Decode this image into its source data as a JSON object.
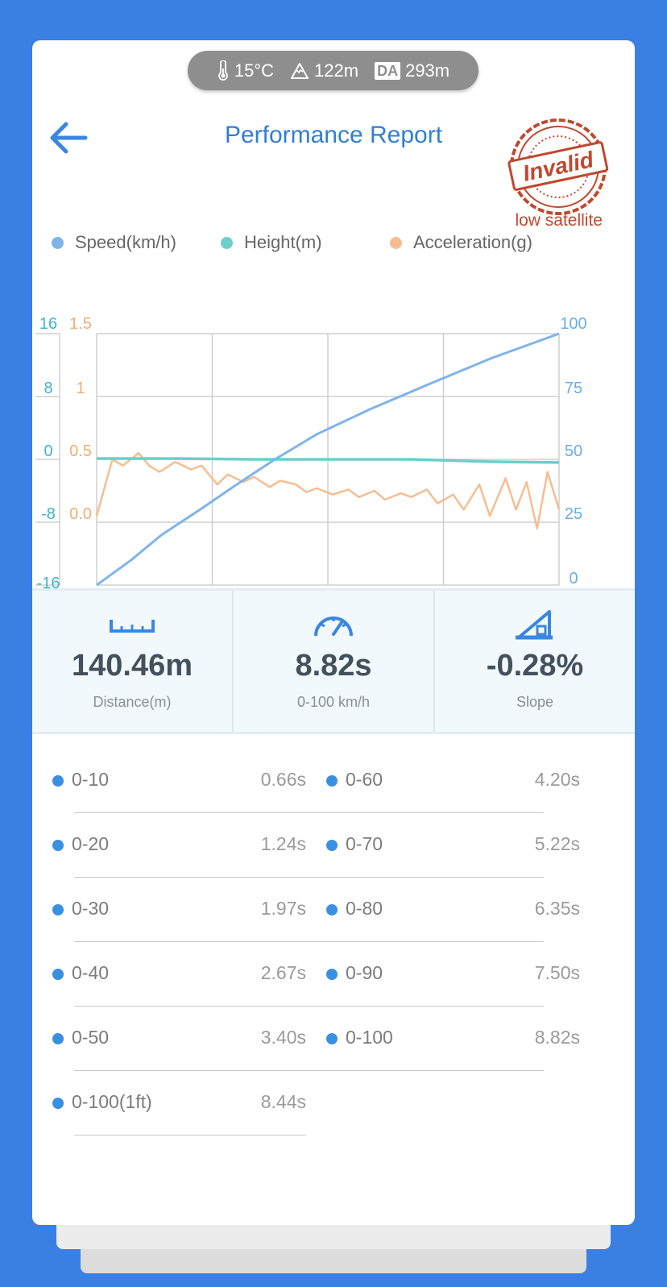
{
  "env": {
    "temperature": "15°C",
    "altitude": "122m",
    "da_label": "DA",
    "density_altitude": "293m"
  },
  "header": {
    "title": "Performance Report",
    "stamp_text": "Invalid",
    "warning": "low satellite"
  },
  "chart_data": {
    "type": "line",
    "legend": [
      "Speed(km/h)",
      "Height(m)",
      "Acceleration(g)"
    ],
    "colors": {
      "speed": "#7fb4ea",
      "height": "#6ccfc9",
      "accel": "#f5be92"
    },
    "axes": {
      "height": {
        "ticks": [
          "16",
          "8",
          "0",
          "-8",
          "-16"
        ],
        "range": [
          -16,
          16
        ]
      },
      "accel": {
        "ticks": [
          "1.5",
          "1",
          "0.5",
          "0.0"
        ],
        "range": [
          -0.5,
          1.5
        ]
      },
      "speed": {
        "ticks": [
          "100",
          "75",
          "50",
          "25",
          "0"
        ],
        "range": [
          0,
          100
        ]
      }
    },
    "time_range": [
      0,
      8.82
    ],
    "series": [
      {
        "name": "Speed(km/h)",
        "x": [
          0,
          0.66,
          1.24,
          1.97,
          2.67,
          3.4,
          4.2,
          5.22,
          6.35,
          7.5,
          8.82
        ],
        "y": [
          0,
          10,
          20,
          30,
          40,
          50,
          60,
          70,
          80,
          90,
          100
        ]
      },
      {
        "name": "Height(m)",
        "x": [
          0,
          1.5,
          3.0,
          4.5,
          6.0,
          7.5,
          8.82
        ],
        "y": [
          0.1,
          0.1,
          0,
          0,
          0,
          -0.3,
          -0.4
        ]
      },
      {
        "name": "Acceleration(g)",
        "x": [
          0,
          0.3,
          0.5,
          0.8,
          1.0,
          1.2,
          1.5,
          1.8,
          2.0,
          2.3,
          2.5,
          2.8,
          3.0,
          3.3,
          3.5,
          3.8,
          4.0,
          4.2,
          4.5,
          4.8,
          5.0,
          5.3,
          5.5,
          5.8,
          6.0,
          6.3,
          6.5,
          6.8,
          7.0,
          7.3,
          7.5,
          7.8,
          8.0,
          8.2,
          8.4,
          8.6,
          8.82
        ],
        "y": [
          0.05,
          0.5,
          0.45,
          0.55,
          0.45,
          0.4,
          0.48,
          0.42,
          0.45,
          0.3,
          0.38,
          0.32,
          0.36,
          0.28,
          0.33,
          0.3,
          0.24,
          0.27,
          0.22,
          0.26,
          0.2,
          0.25,
          0.18,
          0.23,
          0.2,
          0.26,
          0.15,
          0.22,
          0.1,
          0.3,
          0.05,
          0.35,
          0.1,
          0.32,
          -0.05,
          0.4,
          0.1
        ]
      }
    ]
  },
  "stats": [
    {
      "value": "140.46m",
      "label": "Distance(m)",
      "icon": "ruler-icon"
    },
    {
      "value": "8.82s",
      "label": "0-100 km/h",
      "icon": "speedometer-icon"
    },
    {
      "value": "-0.28%",
      "label": "Slope",
      "icon": "slope-icon"
    }
  ],
  "splits": [
    {
      "range": "0-10",
      "time": "0.66s"
    },
    {
      "range": "0-60",
      "time": "4.20s"
    },
    {
      "range": "0-20",
      "time": "1.24s"
    },
    {
      "range": "0-70",
      "time": "5.22s"
    },
    {
      "range": "0-30",
      "time": "1.97s"
    },
    {
      "range": "0-80",
      "time": "6.35s"
    },
    {
      "range": "0-40",
      "time": "2.67s"
    },
    {
      "range": "0-90",
      "time": "7.50s"
    },
    {
      "range": "0-50",
      "time": "3.40s"
    },
    {
      "range": "0-100",
      "time": "8.82s"
    },
    {
      "range": "0-100(1ft)",
      "time": "8.44s"
    }
  ]
}
